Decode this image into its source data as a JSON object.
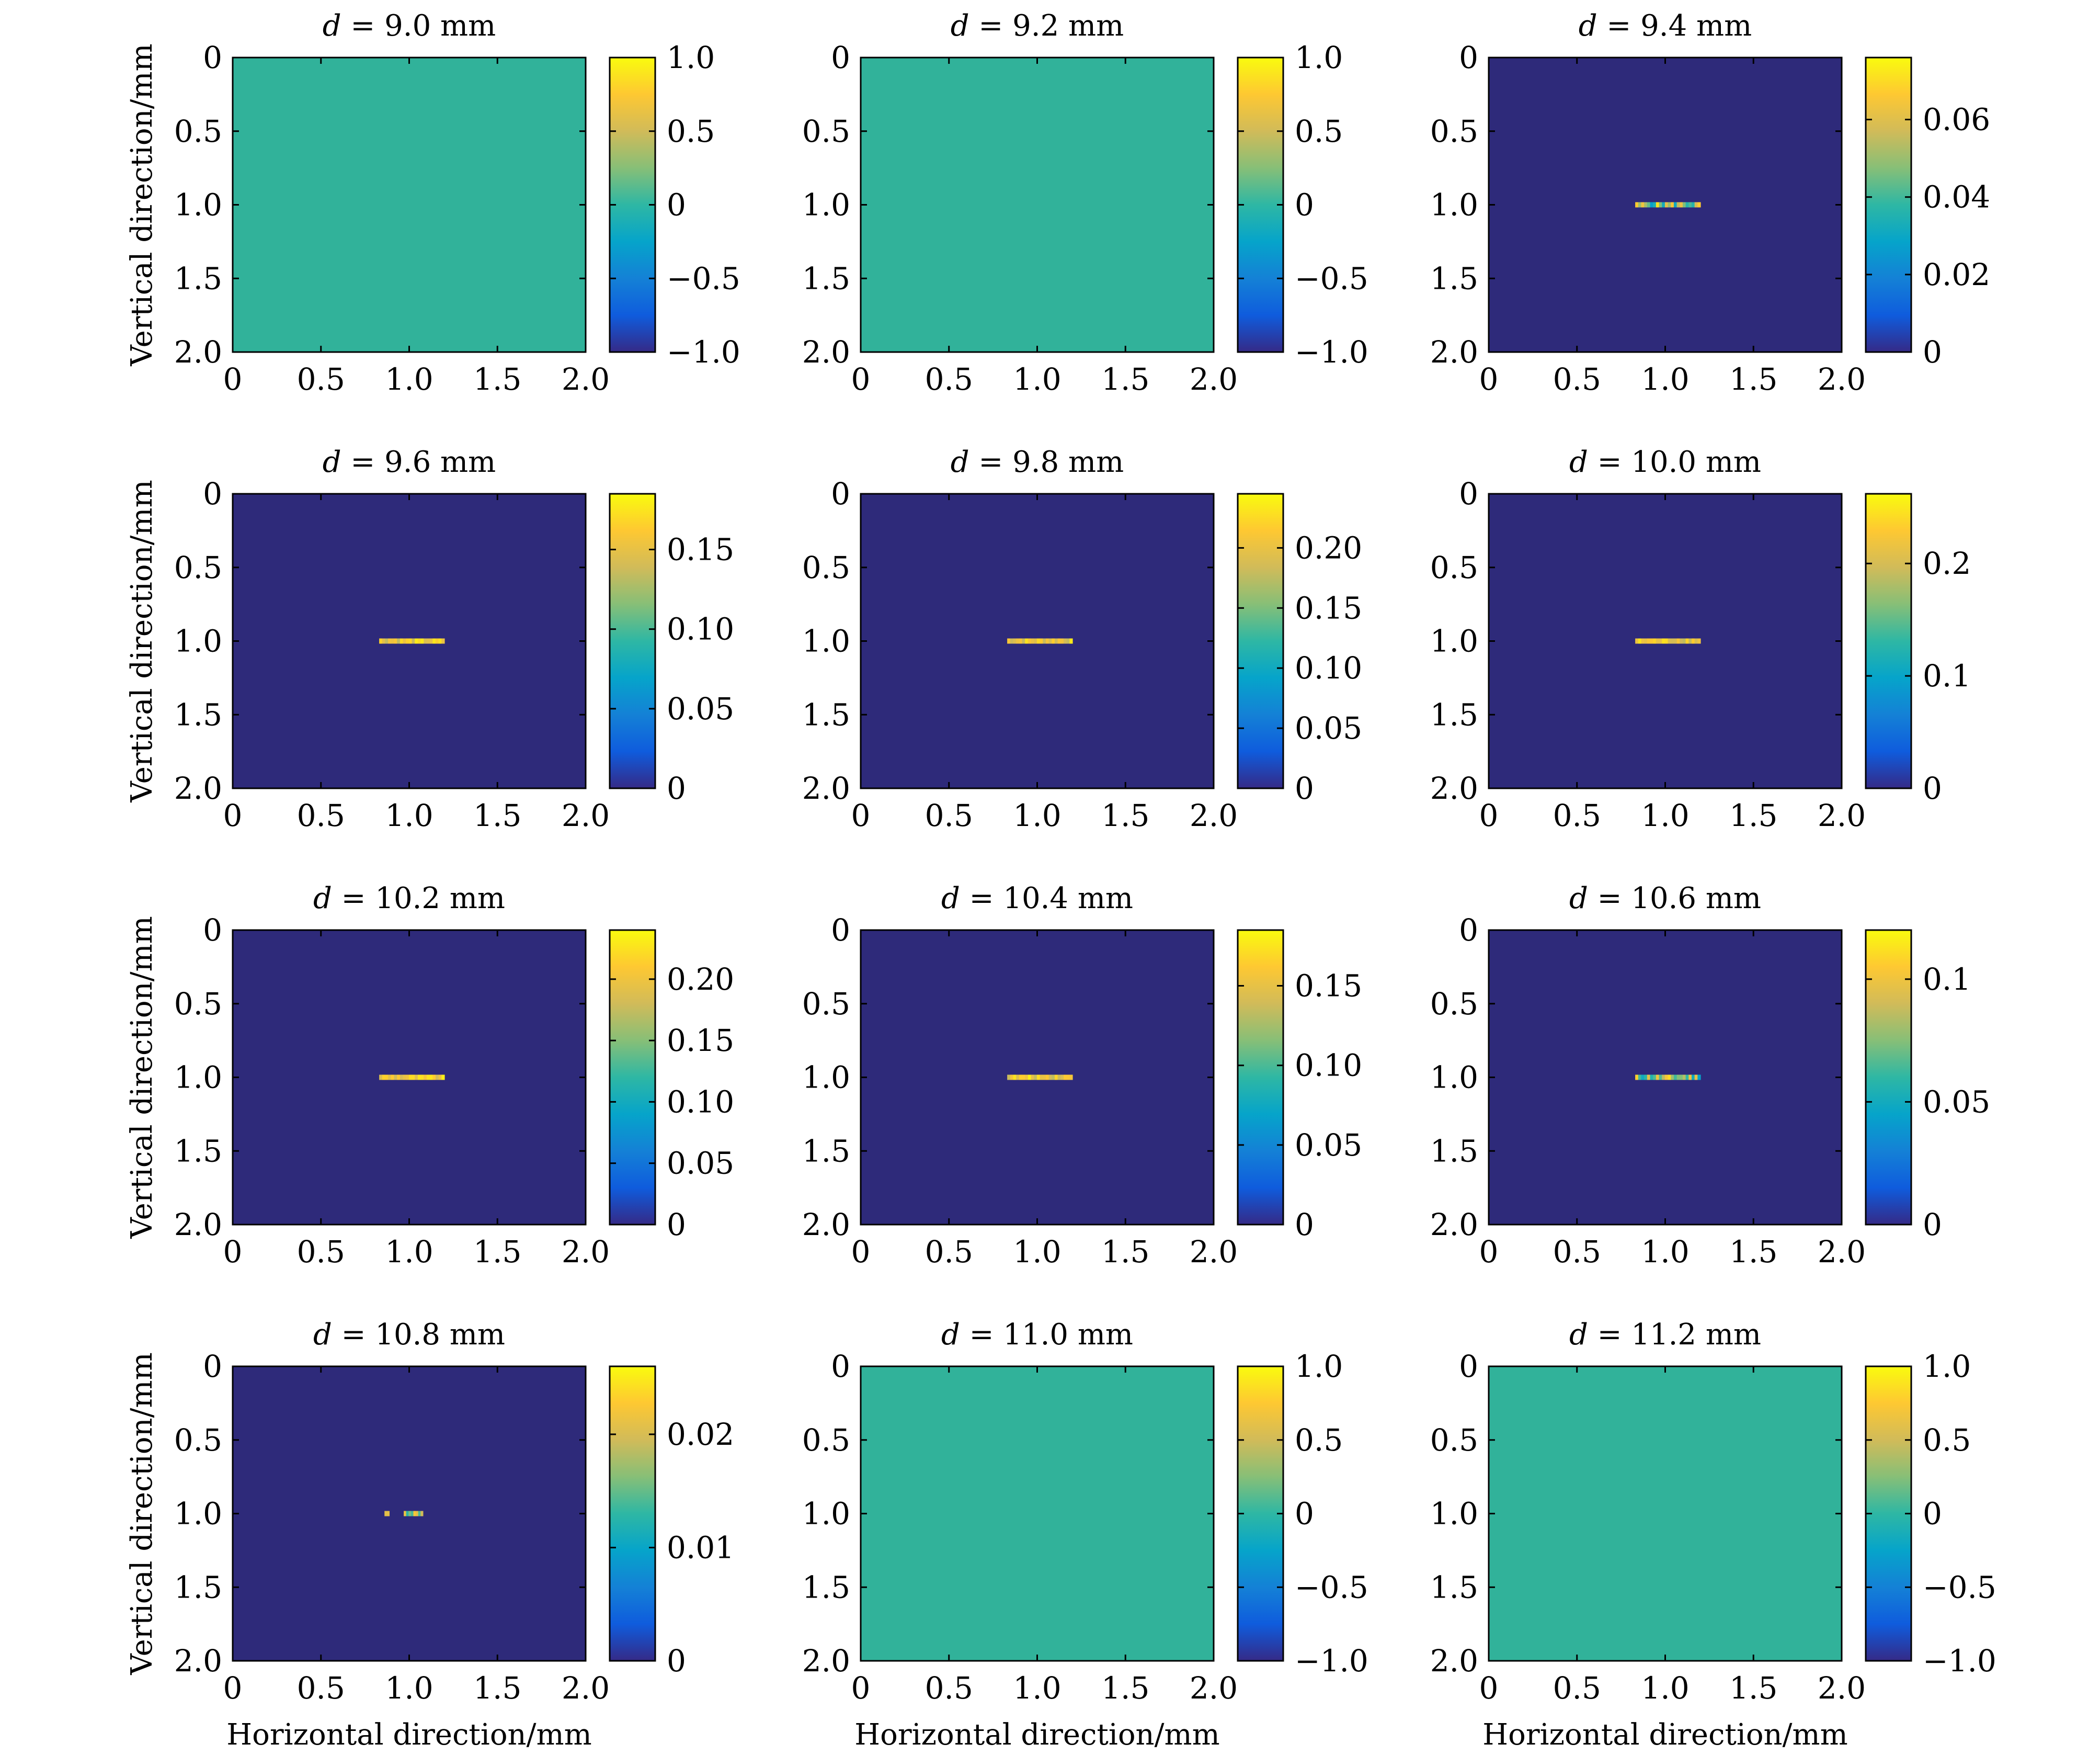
{
  "figure": {
    "ylabel": "Vertical direction/mm",
    "xlabel": "Horizontal direction/mm"
  },
  "colormap": "parula",
  "colors": {
    "uniform_field": "#31B29A",
    "background": "#2E2A7A",
    "axis": "#000000"
  },
  "chart_data": [
    {
      "type": "heatmap",
      "title": "d = 9.0 mm",
      "title_var": "d",
      "title_rest": " = 9.0 mm",
      "x_ticks": [
        "0",
        "0.5",
        "1.0",
        "1.5",
        "2.0"
      ],
      "y_ticks": [
        "0",
        "0.5",
        "1.0",
        "1.5",
        "2.0"
      ],
      "xlim": [
        0,
        2.0
      ],
      "ylim": [
        0,
        2.0
      ],
      "y_reversed": true,
      "field": "uniform",
      "uniform_value": 0,
      "clim": [
        -1.0,
        1.0
      ],
      "colorbar_ticks": [
        1.0,
        0.5,
        0,
        -0.5,
        -1.0
      ],
      "colorbar_labels": [
        "1.0",
        "0.5",
        "0",
        "−0.5",
        "−1.0"
      ]
    },
    {
      "type": "heatmap",
      "title": "d = 9.2 mm",
      "title_var": "d",
      "title_rest": " = 9.2 mm",
      "x_ticks": [
        "0",
        "0.5",
        "1.0",
        "1.5",
        "2.0"
      ],
      "y_ticks": [
        "0",
        "0.5",
        "1.0",
        "1.5",
        "2.0"
      ],
      "xlim": [
        0,
        2.0
      ],
      "ylim": [
        0,
        2.0
      ],
      "y_reversed": true,
      "field": "uniform",
      "uniform_value": 0,
      "clim": [
        -1.0,
        1.0
      ],
      "colorbar_ticks": [
        1.0,
        0.5,
        0,
        -0.5,
        -1.0
      ],
      "colorbar_labels": [
        "1.0",
        "0.5",
        "0",
        "−0.5",
        "−1.0"
      ]
    },
    {
      "type": "heatmap",
      "title": "d = 9.4 mm",
      "title_var": "d",
      "title_rest": " = 9.4 mm",
      "x_ticks": [
        "0",
        "0.5",
        "1.0",
        "1.5",
        "2.0"
      ],
      "y_ticks": [
        "0",
        "0.5",
        "1.0",
        "1.5",
        "2.0"
      ],
      "xlim": [
        0,
        2.0
      ],
      "ylim": [
        0,
        2.0
      ],
      "y_reversed": true,
      "field": "line",
      "line_x": [
        0.83,
        1.2
      ],
      "line_y": 1.0,
      "peak": 0.075,
      "pattern": "mixed",
      "clim": [
        0,
        0.076
      ],
      "colorbar_ticks": [
        0.06,
        0.04,
        0.02,
        0
      ],
      "colorbar_labels": [
        "0.06",
        "0.04",
        "0.02",
        "0"
      ]
    },
    {
      "type": "heatmap",
      "title": "d = 9.6 mm",
      "title_var": "d",
      "title_rest": " = 9.6 mm",
      "x_ticks": [
        "0",
        "0.5",
        "1.0",
        "1.5",
        "2.0"
      ],
      "y_ticks": [
        "0",
        "0.5",
        "1.0",
        "1.5",
        "2.0"
      ],
      "xlim": [
        0,
        2.0
      ],
      "ylim": [
        0,
        2.0
      ],
      "y_reversed": true,
      "field": "line",
      "line_x": [
        0.83,
        1.2
      ],
      "line_y": 1.0,
      "peak": 0.18,
      "pattern": "bright",
      "clim": [
        0,
        0.185
      ],
      "colorbar_ticks": [
        0.15,
        0.1,
        0.05,
        0
      ],
      "colorbar_labels": [
        "0.15",
        "0.10",
        "0.05",
        "0"
      ]
    },
    {
      "type": "heatmap",
      "title": "d = 9.8 mm",
      "title_var": "d",
      "title_rest": " = 9.8 mm",
      "x_ticks": [
        "0",
        "0.5",
        "1.0",
        "1.5",
        "2.0"
      ],
      "y_ticks": [
        "0",
        "0.5",
        "1.0",
        "1.5",
        "2.0"
      ],
      "xlim": [
        0,
        2.0
      ],
      "ylim": [
        0,
        2.0
      ],
      "y_reversed": true,
      "field": "line",
      "line_x": [
        0.83,
        1.2
      ],
      "line_y": 1.0,
      "peak": 0.24,
      "pattern": "bright",
      "clim": [
        0,
        0.245
      ],
      "colorbar_ticks": [
        0.2,
        0.15,
        0.1,
        0.05,
        0
      ],
      "colorbar_labels": [
        "0.20",
        "0.15",
        "0.10",
        "0.05",
        "0"
      ]
    },
    {
      "type": "heatmap",
      "title": "d = 10.0 mm",
      "title_var": "d",
      "title_rest": " = 10.0 mm",
      "x_ticks": [
        "0",
        "0.5",
        "1.0",
        "1.5",
        "2.0"
      ],
      "y_ticks": [
        "0",
        "0.5",
        "1.0",
        "1.5",
        "2.0"
      ],
      "xlim": [
        0,
        2.0
      ],
      "ylim": [
        0,
        2.0
      ],
      "y_reversed": true,
      "field": "line",
      "line_x": [
        0.83,
        1.2
      ],
      "line_y": 1.0,
      "peak": 0.26,
      "pattern": "bright",
      "clim": [
        0,
        0.262
      ],
      "colorbar_ticks": [
        0.2,
        0.1,
        0
      ],
      "colorbar_labels": [
        "0.2",
        "0.1",
        "0"
      ]
    },
    {
      "type": "heatmap",
      "title": "d = 10.2 mm",
      "title_var": "d",
      "title_rest": " = 10.2 mm",
      "x_ticks": [
        "0",
        "0.5",
        "1.0",
        "1.5",
        "2.0"
      ],
      "y_ticks": [
        "0",
        "0.5",
        "1.0",
        "1.5",
        "2.0"
      ],
      "xlim": [
        0,
        2.0
      ],
      "ylim": [
        0,
        2.0
      ],
      "y_reversed": true,
      "field": "line",
      "line_x": [
        0.83,
        1.2
      ],
      "line_y": 1.0,
      "peak": 0.24,
      "pattern": "bright",
      "clim": [
        0,
        0.24
      ],
      "colorbar_ticks": [
        0.2,
        0.15,
        0.1,
        0.05,
        0
      ],
      "colorbar_labels": [
        "0.20",
        "0.15",
        "0.10",
        "0.05",
        "0"
      ]
    },
    {
      "type": "heatmap",
      "title": "d = 10.4 mm",
      "title_var": "d",
      "title_rest": " = 10.4 mm",
      "x_ticks": [
        "0",
        "0.5",
        "1.0",
        "1.5",
        "2.0"
      ],
      "y_ticks": [
        "0",
        "0.5",
        "1.0",
        "1.5",
        "2.0"
      ],
      "xlim": [
        0,
        2.0
      ],
      "ylim": [
        0,
        2.0
      ],
      "y_reversed": true,
      "field": "line",
      "line_x": [
        0.83,
        1.2
      ],
      "line_y": 1.0,
      "peak": 0.18,
      "pattern": "bright",
      "clim": [
        0,
        0.185
      ],
      "colorbar_ticks": [
        0.15,
        0.1,
        0.05,
        0
      ],
      "colorbar_labels": [
        "0.15",
        "0.10",
        "0.05",
        "0"
      ]
    },
    {
      "type": "heatmap",
      "title": "d = 10.6 mm",
      "title_var": "d",
      "title_rest": " = 10.6 mm",
      "x_ticks": [
        "0",
        "0.5",
        "1.0",
        "1.5",
        "2.0"
      ],
      "y_ticks": [
        "0",
        "0.5",
        "1.0",
        "1.5",
        "2.0"
      ],
      "xlim": [
        0,
        2.0
      ],
      "ylim": [
        0,
        2.0
      ],
      "y_reversed": true,
      "field": "line",
      "line_x": [
        0.83,
        1.2
      ],
      "line_y": 1.0,
      "peak": 0.12,
      "pattern": "mixed",
      "clim": [
        0,
        0.12
      ],
      "colorbar_ticks": [
        0.1,
        0.05,
        0
      ],
      "colorbar_labels": [
        "0.1",
        "0.05",
        "0"
      ]
    },
    {
      "type": "heatmap",
      "title": "d = 10.8 mm",
      "title_var": "d",
      "title_rest": " = 10.8 mm",
      "x_ticks": [
        "0",
        "0.5",
        "1.0",
        "1.5",
        "2.0"
      ],
      "y_ticks": [
        "0",
        "0.5",
        "1.0",
        "1.5",
        "2.0"
      ],
      "xlim": [
        0,
        2.0
      ],
      "ylim": [
        0,
        2.0
      ],
      "y_reversed": true,
      "field": "line",
      "line_x": [
        0.86,
        1.16
      ],
      "line_y": 1.0,
      "peak": 0.026,
      "pattern": "sparse",
      "clim": [
        0,
        0.026
      ],
      "colorbar_ticks": [
        0.02,
        0.01,
        0
      ],
      "colorbar_labels": [
        "0.02",
        "0.01",
        "0"
      ]
    },
    {
      "type": "heatmap",
      "title": "d = 11.0 mm",
      "title_var": "d",
      "title_rest": " = 11.0 mm",
      "x_ticks": [
        "0",
        "0.5",
        "1.0",
        "1.5",
        "2.0"
      ],
      "y_ticks": [
        "0",
        "0.5",
        "1.0",
        "1.5",
        "2.0"
      ],
      "xlim": [
        0,
        2.0
      ],
      "ylim": [
        0,
        2.0
      ],
      "y_reversed": true,
      "field": "uniform",
      "uniform_value": 0,
      "clim": [
        -1.0,
        1.0
      ],
      "colorbar_ticks": [
        1.0,
        0.5,
        0,
        -0.5,
        -1.0
      ],
      "colorbar_labels": [
        "1.0",
        "0.5",
        "0",
        "−0.5",
        "−1.0"
      ]
    },
    {
      "type": "heatmap",
      "title": "d = 11.2 mm",
      "title_var": "d",
      "title_rest": " = 11.2 mm",
      "x_ticks": [
        "0",
        "0.5",
        "1.0",
        "1.5",
        "2.0"
      ],
      "y_ticks": [
        "0",
        "0.5",
        "1.0",
        "1.5",
        "2.0"
      ],
      "xlim": [
        0,
        2.0
      ],
      "ylim": [
        0,
        2.0
      ],
      "y_reversed": true,
      "field": "uniform",
      "uniform_value": 0,
      "clim": [
        -1.0,
        1.0
      ],
      "colorbar_ticks": [
        1.0,
        0.5,
        0,
        -0.5,
        -1.0
      ],
      "colorbar_labels": [
        "1.0",
        "0.5",
        "0",
        "−0.5",
        "−1.0"
      ]
    }
  ]
}
